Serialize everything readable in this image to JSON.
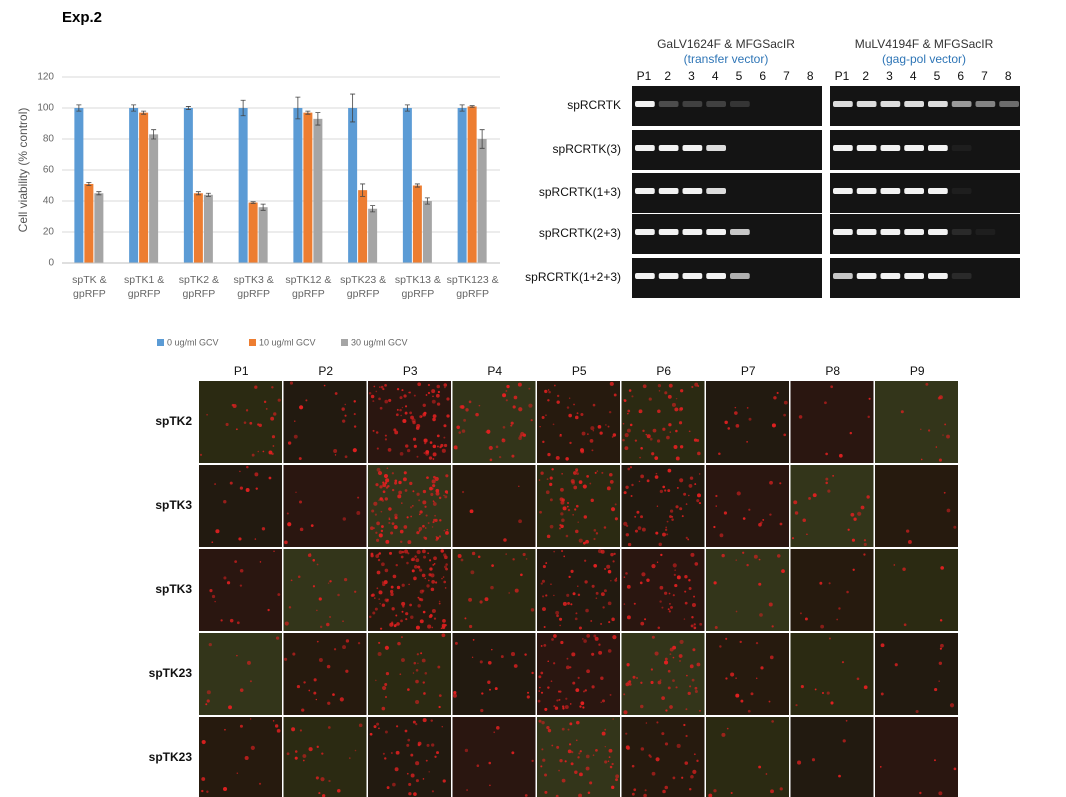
{
  "title": "Exp.2",
  "chart_data": {
    "type": "bar",
    "ylabel": "Cell viability (% control)",
    "categories": [
      "spTK & gpRFP",
      "spTK1 & gpRFP",
      "spTK2 & gpRFP",
      "spTK3 & gpRFP",
      "spTK12 & gpRFP",
      "spTK23 & gpRFP",
      "spTK13 & gpRFP",
      "spTK123 & gpRFP"
    ],
    "series": [
      {
        "name": "0 ug/ml GCV",
        "color": "#5b9bd5",
        "values": [
          100,
          100,
          100,
          100,
          100,
          100,
          100,
          100
        ],
        "errors": [
          2,
          2,
          1,
          5,
          7,
          9,
          2,
          2
        ]
      },
      {
        "name": "10 ug/ml GCV",
        "color": "#ed7d31",
        "values": [
          51,
          97,
          45,
          39,
          97,
          47,
          50,
          101
        ],
        "errors": [
          1,
          1,
          1,
          0.5,
          1,
          4,
          1,
          0.5
        ]
      },
      {
        "name": "30 ug/ml GCV",
        "color": "#a5a5a5",
        "values": [
          45,
          83,
          44,
          36,
          93,
          35,
          40,
          80
        ],
        "errors": [
          1,
          3,
          1,
          2,
          4,
          2,
          2,
          6
        ]
      }
    ],
    "ylim": [
      0,
      120
    ],
    "yticks": [
      0,
      20,
      40,
      60,
      80,
      100,
      120
    ],
    "grid": true,
    "legend": "bottom"
  },
  "gel": {
    "left": {
      "primers": "GaLV1624F & MFGSacIR",
      "vector": "(transfer vector)"
    },
    "right": {
      "primers": "MuLV4194F & MFGSacIR",
      "vector": "(gag-pol vector)"
    },
    "lanes": [
      "P1",
      "2",
      "3",
      "4",
      "5",
      "6",
      "7",
      "8"
    ],
    "rows": [
      "spRCRTK",
      "spRCRTK(3)",
      "spRCRTK(1+3)",
      "spRCRTK(2+3)",
      "spRCRTK(1+2+3)"
    ]
  },
  "microscopy": {
    "columns": [
      "P1",
      "P2",
      "P3",
      "P4",
      "P5",
      "P6",
      "P7",
      "P8",
      "P9"
    ],
    "rows": [
      "spTK2",
      "spTK3",
      "spTK3",
      "spTK23",
      "spTK23"
    ]
  }
}
